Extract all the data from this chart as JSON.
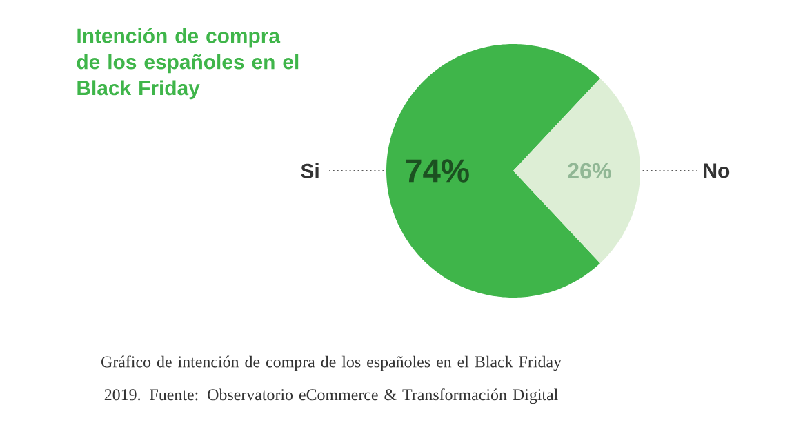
{
  "chart_data": {
    "type": "pie",
    "title": "Intención de compra de los españoles en el Black Friday",
    "categories": [
      "Si",
      "No"
    ],
    "values": [
      74,
      26
    ],
    "value_labels": [
      "74%",
      "26%"
    ],
    "colors": [
      "#3fb54a",
      "#ddeed5"
    ],
    "annotations": [
      "Gráfico de intención de compra de los españoles en el Black Friday 2019. Fuente: Observatorio eCommerce & Transformación Digital"
    ]
  }
}
